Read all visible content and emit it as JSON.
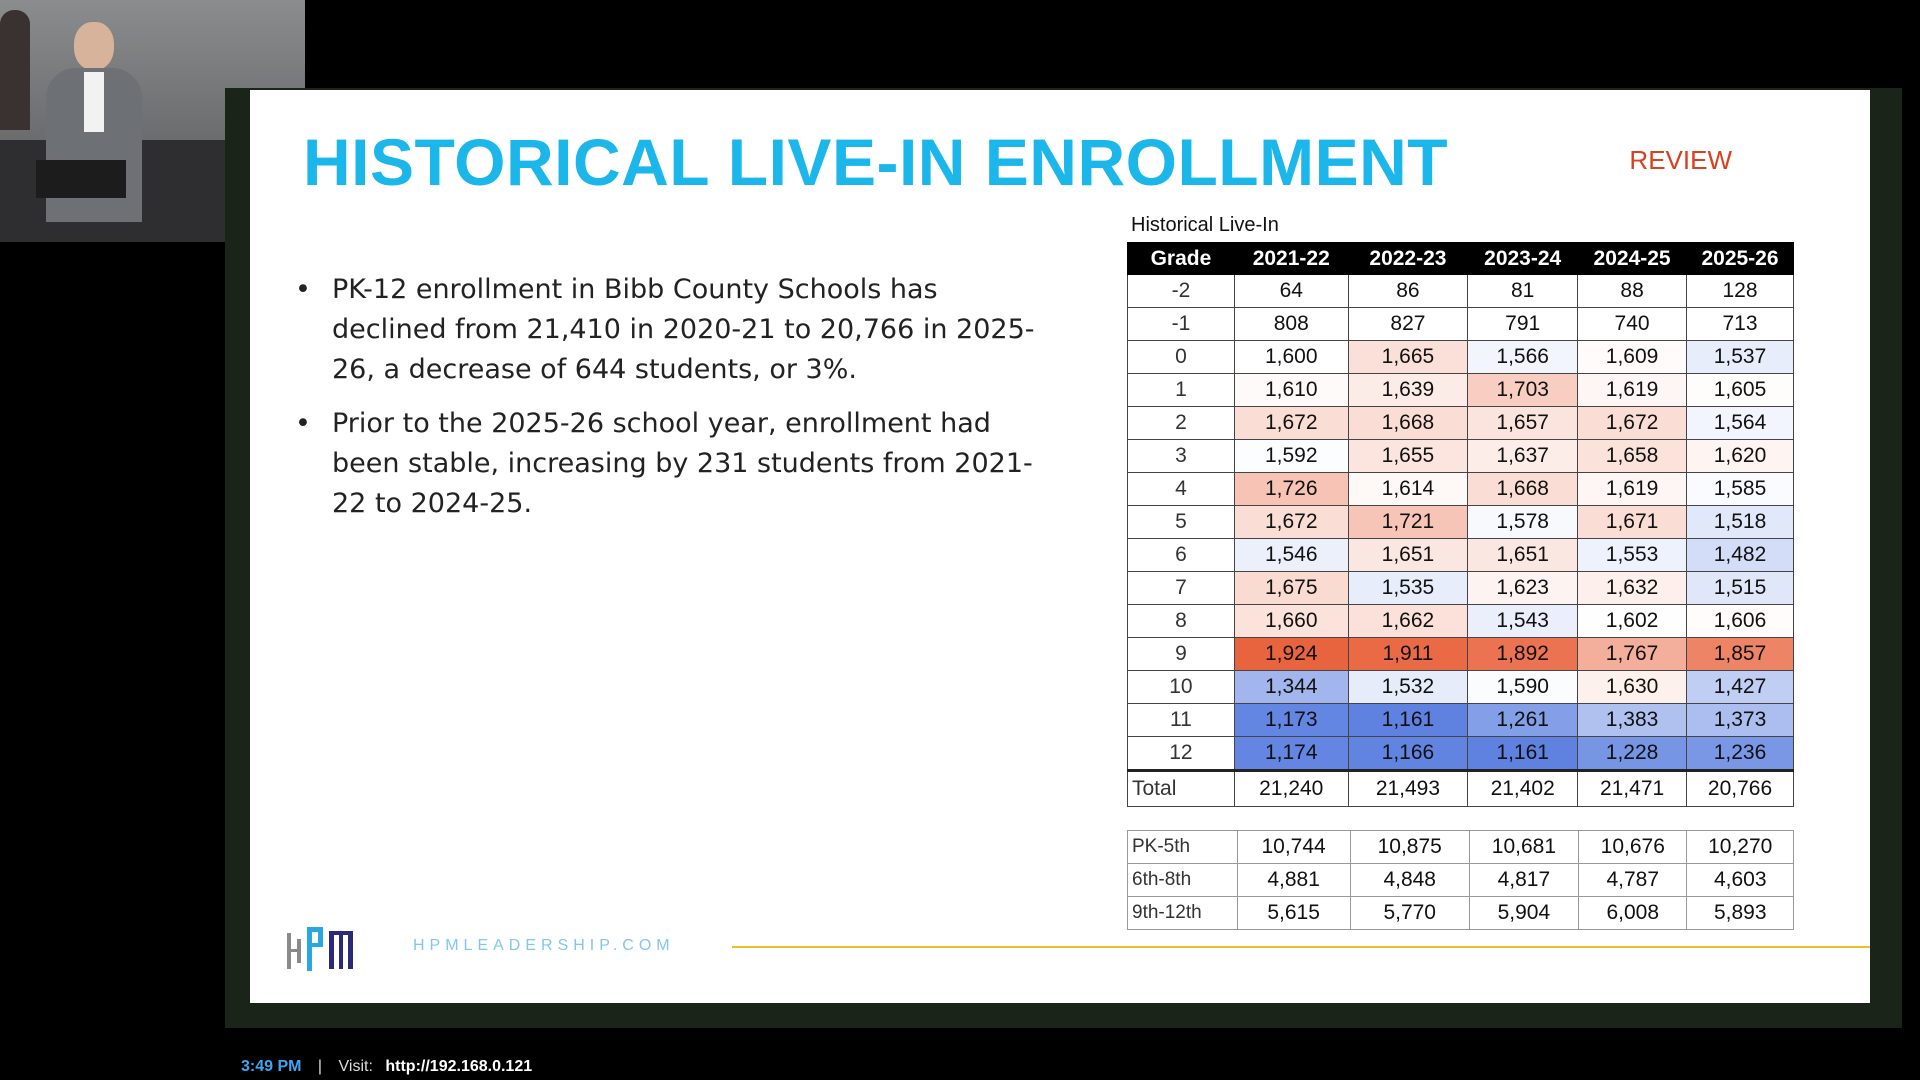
{
  "slide": {
    "title": "HISTORICAL LIVE-IN ENROLLMENT",
    "badge": "REVIEW",
    "bullets": [
      "PK-12 enrollment in Bibb County Schools has declined from 21,410 in 2020-21 to 20,766 in 2025-26, a decrease of 644 students, or 3%.",
      "Prior to the 2025-26 school year, enrollment had been stable, increasing by 231 students from 2021-22 to 2024-25."
    ],
    "bullet_glyph": "•"
  },
  "table": {
    "caption": "Historical Live-In",
    "columns": [
      "Grade",
      "2021-22",
      "2022-23",
      "2023-24",
      "2024-25",
      "2025-26"
    ],
    "rows": [
      {
        "grade": "-2",
        "values": [
          "64",
          "86",
          "81",
          "88",
          "128"
        ]
      },
      {
        "grade": "-1",
        "values": [
          "808",
          "827",
          "791",
          "740",
          "713"
        ]
      },
      {
        "grade": "0",
        "values": [
          "1,600",
          "1,665",
          "1,566",
          "1,609",
          "1,537"
        ]
      },
      {
        "grade": "1",
        "values": [
          "1,610",
          "1,639",
          "1,703",
          "1,619",
          "1,605"
        ]
      },
      {
        "grade": "2",
        "values": [
          "1,672",
          "1,668",
          "1,657",
          "1,672",
          "1,564"
        ]
      },
      {
        "grade": "3",
        "values": [
          "1,592",
          "1,655",
          "1,637",
          "1,658",
          "1,620"
        ]
      },
      {
        "grade": "4",
        "values": [
          "1,726",
          "1,614",
          "1,668",
          "1,619",
          "1,585"
        ]
      },
      {
        "grade": "5",
        "values": [
          "1,672",
          "1,721",
          "1,578",
          "1,671",
          "1,518"
        ]
      },
      {
        "grade": "6",
        "values": [
          "1,546",
          "1,651",
          "1,651",
          "1,553",
          "1,482"
        ]
      },
      {
        "grade": "7",
        "values": [
          "1,675",
          "1,535",
          "1,623",
          "1,632",
          "1,515"
        ]
      },
      {
        "grade": "8",
        "values": [
          "1,660",
          "1,662",
          "1,543",
          "1,602",
          "1,606"
        ]
      },
      {
        "grade": "9",
        "values": [
          "1,924",
          "1,911",
          "1,892",
          "1,767",
          "1,857"
        ]
      },
      {
        "grade": "10",
        "values": [
          "1,344",
          "1,532",
          "1,590",
          "1,630",
          "1,427"
        ]
      },
      {
        "grade": "11",
        "values": [
          "1,173",
          "1,161",
          "1,261",
          "1,383",
          "1,373"
        ]
      },
      {
        "grade": "12",
        "values": [
          "1,174",
          "1,166",
          "1,161",
          "1,228",
          "1,236"
        ]
      }
    ],
    "total": {
      "label": "Total",
      "values": [
        "21,240",
        "21,493",
        "21,402",
        "21,471",
        "20,766"
      ]
    },
    "heatmap": {
      "min": 1150,
      "mid": 1600,
      "max": 1930,
      "low_color": "#5b7fe0",
      "mid_color": "#ffffff",
      "high_color": "#e8613a"
    }
  },
  "subtotals": [
    {
      "label": "PK-5th",
      "values": [
        "10,744",
        "10,875",
        "10,681",
        "10,676",
        "10,270"
      ]
    },
    {
      "label": "6th-8th",
      "values": [
        "4,881",
        "4,848",
        "4,817",
        "4,787",
        "4,603"
      ]
    },
    {
      "label": "9th-12th",
      "values": [
        "5,615",
        "5,770",
        "5,904",
        "6,008",
        "5,893"
      ]
    }
  ],
  "footer": {
    "logo_text": "HPM",
    "url": "HPMLEADERSHIP.COM",
    "accent": "#e6c229"
  },
  "status_bar": {
    "time": "3:49 PM",
    "separator": "|",
    "visit_label": "Visit:",
    "link": "http://192.168.0.121"
  },
  "colors": {
    "title": "#1bb6ea",
    "review": "#d9401f",
    "time": "#3fa6ef"
  }
}
